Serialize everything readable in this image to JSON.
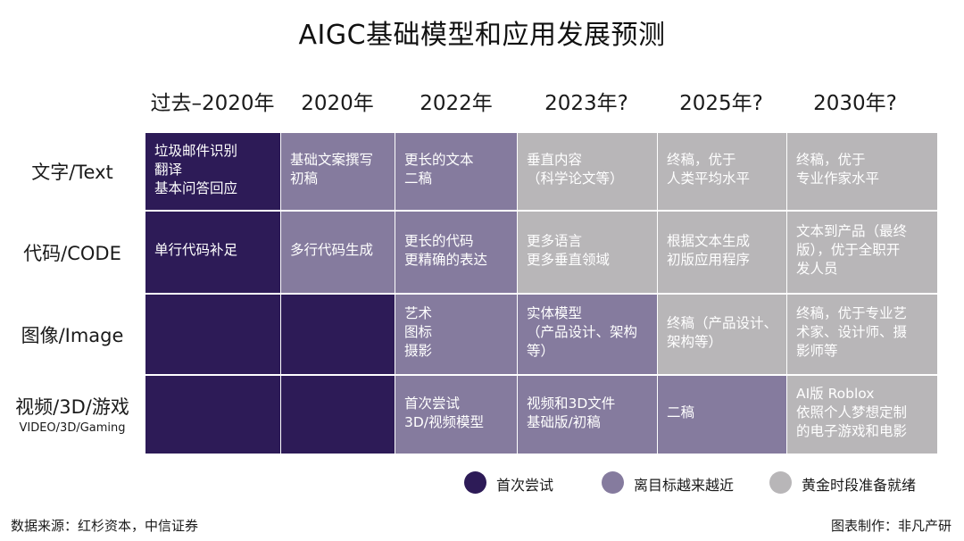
{
  "chart_data": {
    "type": "table",
    "title": "AIGC基础模型和应用发展预测",
    "columns": [
      "过去–2020年",
      "2020年",
      "2022年",
      "2023年?",
      "2025年?",
      "2030年?"
    ],
    "rows": [
      {
        "label": "文字/Text",
        "sublabel": "",
        "cells": [
          {
            "text": "垃圾邮件识别\n翻译\n基本问答回应",
            "stage": 0
          },
          {
            "text": "基础文案撰写\n初稿",
            "stage": 1
          },
          {
            "text": "更长的文本\n二稿",
            "stage": 1
          },
          {
            "text": "垂直内容\n（科学论文等）",
            "stage": 2
          },
          {
            "text": "终稿，优于\n人类平均水平",
            "stage": 2
          },
          {
            "text": "终稿，优于\n专业作家水平",
            "stage": 2
          }
        ]
      },
      {
        "label": "代码/CODE",
        "sublabel": "",
        "cells": [
          {
            "text": "单行代码补足",
            "stage": 0
          },
          {
            "text": "多行代码生成",
            "stage": 1
          },
          {
            "text": "更长的代码\n更精确的表达",
            "stage": 1
          },
          {
            "text": "更多语言\n更多垂直领域",
            "stage": 2
          },
          {
            "text": "根据文本生成\n初版应用程序",
            "stage": 2
          },
          {
            "text": "文本到产品（最终\n版），优于全职开\n发人员",
            "stage": 2
          }
        ]
      },
      {
        "label": "图像/Image",
        "sublabel": "",
        "cells": [
          {
            "text": "",
            "stage": 0
          },
          {
            "text": "",
            "stage": 0
          },
          {
            "text": "艺术\n图标\n摄影",
            "stage": 1
          },
          {
            "text": "实体模型\n（产品设计、架构\n等）",
            "stage": 1
          },
          {
            "text": "终稿（产品设计、\n架构等）",
            "stage": 2
          },
          {
            "text": "终稿，优于专业艺\n术家、设计师、摄\n影师等",
            "stage": 2
          }
        ]
      },
      {
        "label": "视频/3D/游戏",
        "sublabel": "VIDEO/3D/Gaming",
        "cells": [
          {
            "text": "",
            "stage": 0
          },
          {
            "text": "",
            "stage": 0
          },
          {
            "text": "首次尝试\n3D/视频模型",
            "stage": 1
          },
          {
            "text": "视频和3D文件\n基础版/初稿",
            "stage": 1
          },
          {
            "text": "二稿",
            "stage": 1
          },
          {
            "text": "AI版 Roblox\n依照个人梦想定制\n的电子游戏和电影",
            "stage": 2
          }
        ]
      }
    ],
    "legend": [
      {
        "label": "首次尝试",
        "color": "#2d1b57"
      },
      {
        "label": "离目标越来越近",
        "color": "#857b9e"
      },
      {
        "label": "黄金时段准备就绪",
        "color": "#b8b6b8"
      }
    ]
  },
  "footer": {
    "source": "数据来源：红杉资本，中信证券",
    "credit": "图表制作：非凡产研"
  }
}
